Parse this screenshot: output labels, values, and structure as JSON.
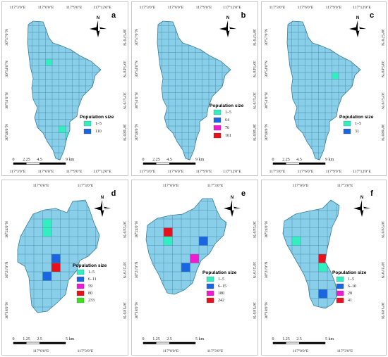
{
  "colors": {
    "water": "#89cfe9",
    "grid": "#4f8fab",
    "outline": "#3a7d9a",
    "pop_1_5": "#33efc0",
    "pop_6": "#1a66e0",
    "pop_mid": "#f01bd0",
    "pop_high": "#e8101a",
    "pop_233": "#3ee01e"
  },
  "icons": {
    "north_arrow": "north-arrow-compass-icon"
  },
  "legend_title": "Population size",
  "north_label": "N",
  "panels": [
    {
      "id": "a",
      "top_ticks": [
        "117°3'0\"E",
        "117°6'0\"E",
        "117°9'0\"E",
        "117°12'0\"E"
      ],
      "bottom_ticks": [
        "117°3'0\"E",
        "117°6'0\"E",
        "117°9'0\"E",
        "117°12'0\"E"
      ],
      "left_ticks": [
        "30°57'0\"N",
        "30°54'0\"N",
        "30°51'0\"N",
        "30°48'0\"N"
      ],
      "right_ticks": [
        "30°57'0\"N",
        "30°54'0\"N",
        "30°51'0\"N",
        "30°48'0\"N"
      ],
      "scale": [
        "0",
        "2.25",
        "4.5",
        "9 km"
      ],
      "legend": [
        {
          "label": "1–5",
          "color": "#33efc0"
        },
        {
          "label": "110",
          "color": "#1a66e0"
        }
      ]
    },
    {
      "id": "b",
      "top_ticks": [
        "117°3'0\"E",
        "117°6'0\"E",
        "117°9'0\"E",
        "117°12'0\"E"
      ],
      "bottom_ticks": [
        "117°3'0\"E",
        "117°6'0\"E",
        "117°9'0\"E",
        "117°12'0\"E"
      ],
      "left_ticks": [
        "30°57'0\"N",
        "30°54'0\"N",
        "30°51'0\"N",
        "30°48'0\"N"
      ],
      "right_ticks": [
        "30°57'0\"N",
        "30°54'0\"N",
        "30°51'0\"N",
        "30°48'0\"N"
      ],
      "scale": [
        "0",
        "2.25",
        "4.5",
        "9 km"
      ],
      "legend": [
        {
          "label": "1–5",
          "color": "#33efc0"
        },
        {
          "label": "64",
          "color": "#1a66e0"
        },
        {
          "label": "76",
          "color": "#f01bd0"
        },
        {
          "label": "161",
          "color": "#e8101a"
        }
      ]
    },
    {
      "id": "c",
      "top_ticks": [
        "117°3'0\"E",
        "117°6'0\"E",
        "117°9'0\"E",
        "117°12'0\"E"
      ],
      "bottom_ticks": [
        "117°3'0\"E",
        "117°6'0\"E",
        "117°9'0\"E",
        "117°12'0\"E"
      ],
      "left_ticks": [
        "30°57'0\"N",
        "30°54'0\"N",
        "30°51'0\"N",
        "30°48'0\"N"
      ],
      "right_ticks": [
        "30°57'0\"N",
        "30°54'0\"N",
        "30°51'0\"N",
        "30°48'0\"N"
      ],
      "scale": [
        "0",
        "2.25",
        "4.5",
        "9 km"
      ],
      "legend": [
        {
          "label": "1–5",
          "color": "#33efc0"
        },
        {
          "label": "31",
          "color": "#1a66e0"
        }
      ]
    },
    {
      "id": "d",
      "top_ticks": [
        "117°0'0\"E",
        "117°3'0\"E"
      ],
      "bottom_ticks": [
        "117°0'0\"E",
        "117°3'0\"E"
      ],
      "left_ticks": [
        "30°24'0\"N",
        "30°21'0\"N",
        "30°18'0\"N"
      ],
      "right_ticks": [
        "30°24'0\"N",
        "30°21'0\"N",
        "30°18'0\"N"
      ],
      "scale": [
        "0",
        "1.25",
        "2.5",
        "5 km"
      ],
      "legend": [
        {
          "label": "1–5",
          "color": "#33efc0"
        },
        {
          "label": "6–11",
          "color": "#1a66e0"
        },
        {
          "label": "59",
          "color": "#f01bd0"
        },
        {
          "label": "80",
          "color": "#e8101a"
        },
        {
          "label": "233",
          "color": "#3ee01e"
        }
      ]
    },
    {
      "id": "e",
      "top_ticks": [
        "117°0'0\"E",
        "117°3'0\"E"
      ],
      "bottom_ticks": [
        "117°0'0\"E",
        "117°3'0\"E"
      ],
      "left_ticks": [
        "30°24'0\"N",
        "30°21'0\"N",
        "30°18'0\"N"
      ],
      "right_ticks": [
        "30°24'0\"N",
        "30°21'0\"N",
        "30°18'0\"N"
      ],
      "scale": [
        "0",
        "1.25",
        "2.5",
        "5 km"
      ],
      "legend": [
        {
          "label": "1–5",
          "color": "#33efc0"
        },
        {
          "label": "6–15",
          "color": "#1a66e0"
        },
        {
          "label": "180",
          "color": "#f01bd0"
        },
        {
          "label": "242",
          "color": "#e8101a"
        }
      ]
    },
    {
      "id": "f",
      "top_ticks": [
        "117°0'0\"E",
        "117°3'0\"E"
      ],
      "bottom_ticks": [
        "117°0'0\"E",
        "117°3'0\"E"
      ],
      "left_ticks": [
        "30°24'0\"N",
        "30°21'0\"N",
        "30°18'0\"N"
      ],
      "right_ticks": [
        "30°24'0\"N",
        "30°21'0\"N",
        "30°18'0\"N"
      ],
      "scale": [
        "0",
        "1.25",
        "2.5",
        "5 km"
      ],
      "legend": [
        {
          "label": "1–5",
          "color": "#33efc0"
        },
        {
          "label": "6–10",
          "color": "#1a66e0"
        },
        {
          "label": "28",
          "color": "#f01bd0"
        },
        {
          "label": "41",
          "color": "#e8101a"
        }
      ]
    }
  ]
}
